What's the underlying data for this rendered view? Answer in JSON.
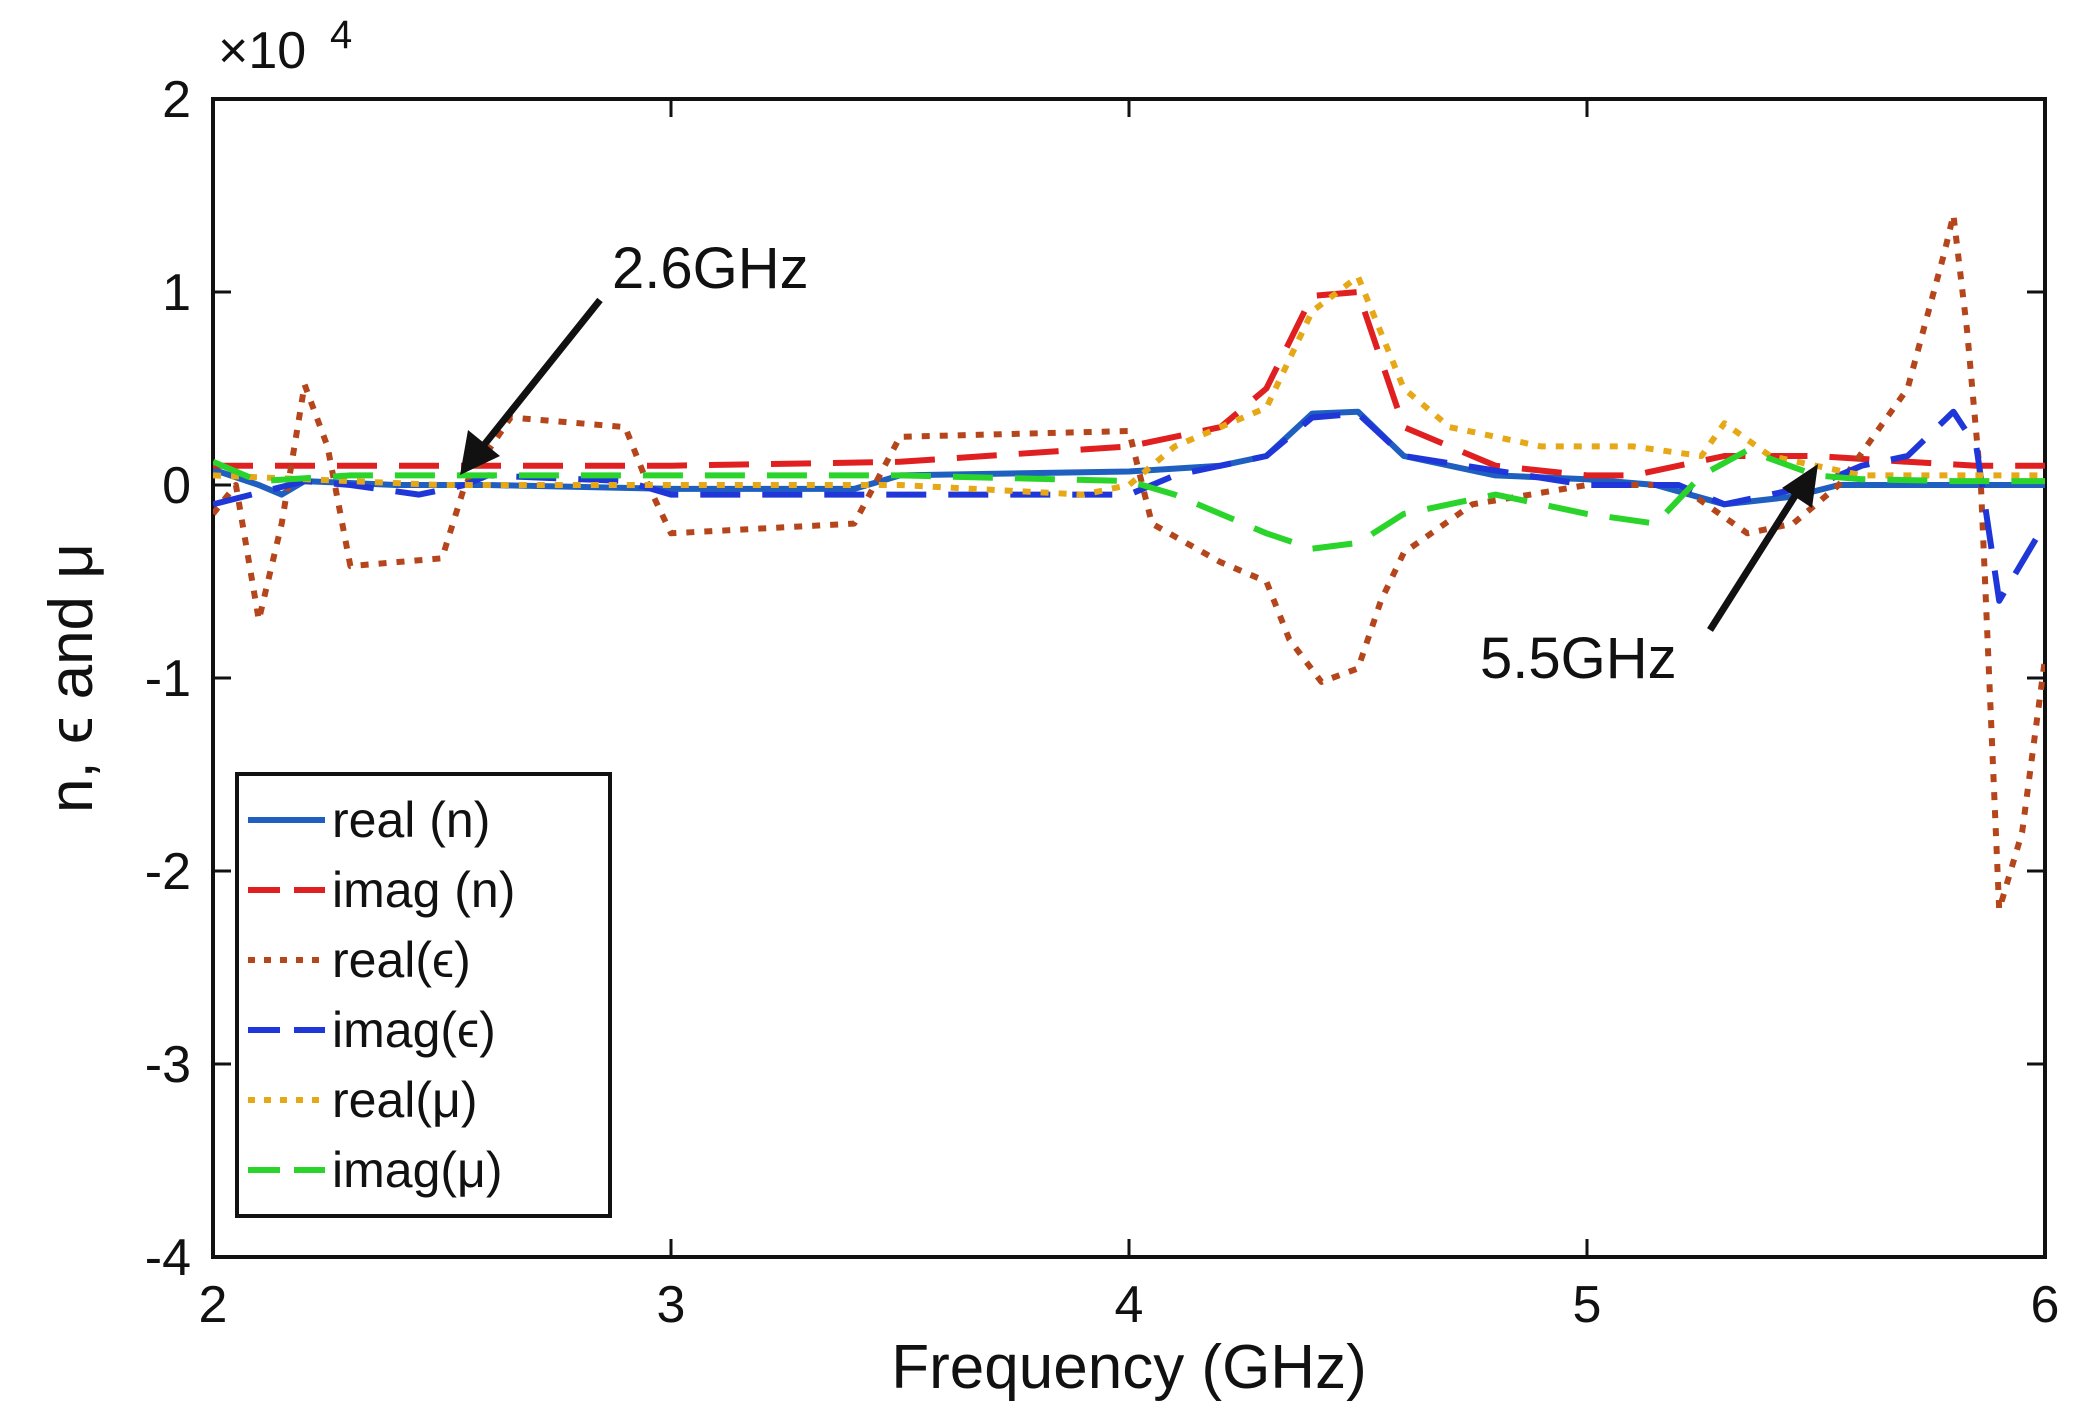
{
  "chart_data": {
    "type": "line",
    "xlabel": "Frequency (GHz)",
    "ylabel": "n, ϵ and μ",
    "y_exponent_label": "×10",
    "y_exponent_power": "4",
    "xlim": [
      2,
      6
    ],
    "ylim": [
      -4,
      2
    ],
    "x_ticks": [
      2,
      3,
      4,
      5,
      6
    ],
    "y_ticks": [
      -4,
      -3,
      -2,
      -1,
      0,
      1,
      2
    ],
    "x_tick_labels": [
      "2",
      "3",
      "4",
      "5",
      "6"
    ],
    "y_tick_labels": [
      "-4",
      "-3",
      "-2",
      "-1",
      "0",
      "1",
      "2"
    ],
    "grid": false,
    "legend_position": "bottom-left",
    "annotations": [
      {
        "text": "2.6GHz",
        "x": 2.55,
        "y": 0.09
      },
      {
        "text": "5.5GHz",
        "x": 5.5,
        "y": 0.13
      }
    ],
    "series": [
      {
        "name": "real (n)",
        "color": "#1f5fbf",
        "style": "solid",
        "x": [
          2.0,
          2.1,
          2.15,
          2.2,
          2.4,
          2.6,
          3.0,
          3.4,
          3.5,
          4.0,
          4.2,
          4.3,
          4.4,
          4.5,
          4.6,
          4.8,
          5.0,
          5.15,
          5.3,
          5.45,
          5.55,
          5.7,
          6.0
        ],
        "y": [
          0.08,
          0.0,
          -0.05,
          0.02,
          0.0,
          0.0,
          -0.02,
          -0.02,
          0.05,
          0.07,
          0.1,
          0.15,
          0.37,
          0.38,
          0.15,
          0.05,
          0.03,
          0.0,
          -0.1,
          -0.06,
          0.0,
          0.0,
          0.0
        ]
      },
      {
        "name": "imag (n)",
        "color": "#e02020",
        "style": "dashed",
        "x": [
          2.0,
          2.2,
          2.6,
          3.0,
          3.5,
          4.0,
          4.2,
          4.3,
          4.4,
          4.5,
          4.6,
          4.8,
          5.0,
          5.1,
          5.2,
          5.3,
          5.5,
          5.7,
          5.85,
          6.0
        ],
        "y": [
          0.1,
          0.1,
          0.1,
          0.1,
          0.12,
          0.2,
          0.3,
          0.5,
          0.98,
          1.0,
          0.3,
          0.1,
          0.05,
          0.05,
          0.1,
          0.15,
          0.15,
          0.12,
          0.1,
          0.1
        ]
      },
      {
        "name": "real(ϵ)",
        "color": "#b5451b",
        "style": "dotted",
        "x": [
          2.0,
          2.05,
          2.1,
          2.15,
          2.2,
          2.25,
          2.3,
          2.5,
          2.55,
          2.65,
          2.9,
          2.95,
          3.0,
          3.4,
          3.5,
          4.0,
          4.05,
          4.2,
          4.3,
          4.35,
          4.42,
          4.5,
          4.55,
          4.6,
          4.75,
          5.0,
          5.2,
          5.35,
          5.45,
          5.55,
          5.7,
          5.78,
          5.8,
          5.83,
          5.86,
          5.9,
          5.95,
          6.0
        ],
        "y": [
          -0.15,
          0.0,
          -0.7,
          -0.2,
          0.52,
          0.2,
          -0.42,
          -0.38,
          0.0,
          0.35,
          0.3,
          0.0,
          -0.25,
          -0.2,
          0.25,
          0.28,
          -0.2,
          -0.4,
          -0.5,
          -0.8,
          -1.02,
          -0.95,
          -0.6,
          -0.35,
          -0.1,
          0.0,
          0.0,
          -0.25,
          -0.2,
          0.0,
          0.5,
          1.2,
          1.4,
          0.8,
          0.0,
          -2.2,
          -1.8,
          -0.9
        ]
      },
      {
        "name": "imag(ϵ)",
        "color": "#1f36d8",
        "style": "dashed",
        "x": [
          2.0,
          2.2,
          2.3,
          2.45,
          2.55,
          2.6,
          2.9,
          3.0,
          3.5,
          4.0,
          4.1,
          4.3,
          4.4,
          4.5,
          4.6,
          5.0,
          5.2,
          5.3,
          5.4,
          5.5,
          5.6,
          5.7,
          5.8,
          5.85,
          5.9,
          6.0
        ],
        "y": [
          -0.1,
          0.02,
          0.0,
          -0.05,
          0.0,
          0.05,
          0.02,
          -0.05,
          -0.05,
          -0.05,
          0.05,
          0.15,
          0.35,
          0.37,
          0.15,
          0.0,
          0.0,
          -0.1,
          -0.05,
          0.0,
          0.1,
          0.15,
          0.38,
          0.2,
          -0.6,
          -0.2
        ]
      },
      {
        "name": "real(μ)",
        "color": "#e6a817",
        "style": "dotted",
        "x": [
          2.0,
          2.5,
          3.0,
          3.5,
          3.9,
          4.0,
          4.1,
          4.3,
          4.4,
          4.5,
          4.6,
          4.7,
          4.9,
          5.1,
          5.25,
          5.3,
          5.4,
          5.6,
          5.8,
          6.0
        ],
        "y": [
          0.05,
          0.0,
          0.0,
          0.0,
          -0.05,
          0.0,
          0.2,
          0.4,
          0.9,
          1.08,
          0.5,
          0.3,
          0.2,
          0.2,
          0.15,
          0.32,
          0.15,
          0.05,
          0.05,
          0.05
        ]
      },
      {
        "name": "imag(μ)",
        "color": "#2ad42a",
        "style": "dashed",
        "x": [
          2.0,
          2.1,
          2.3,
          2.6,
          3.0,
          3.5,
          4.0,
          4.1,
          4.3,
          4.4,
          4.5,
          4.6,
          4.8,
          5.0,
          5.15,
          5.25,
          5.35,
          5.5,
          5.6,
          5.8,
          6.0
        ],
        "y": [
          0.12,
          0.02,
          0.05,
          0.05,
          0.05,
          0.05,
          0.02,
          -0.05,
          -0.25,
          -0.33,
          -0.3,
          -0.15,
          -0.05,
          -0.15,
          -0.2,
          0.05,
          0.18,
          0.05,
          0.03,
          0.02,
          0.02
        ]
      }
    ]
  }
}
